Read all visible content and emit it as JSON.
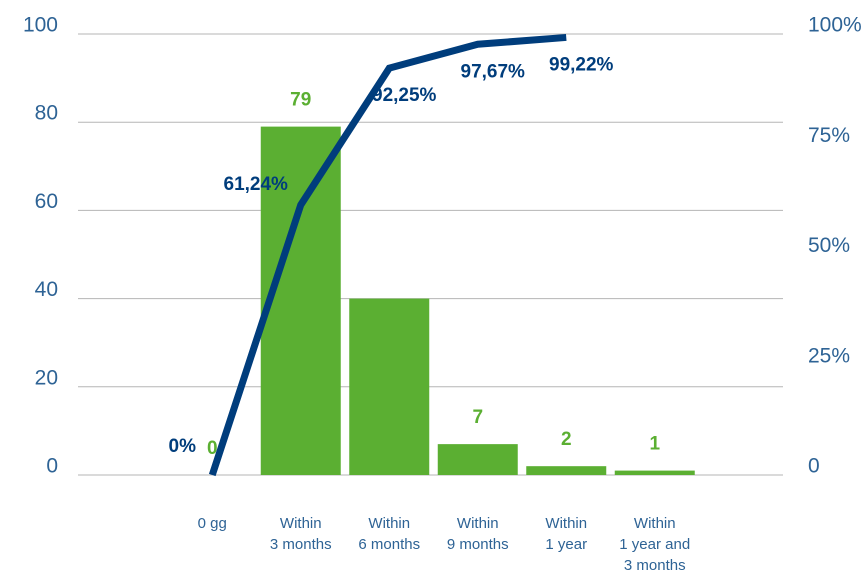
{
  "chart_data": {
    "type": "bar",
    "categories": [
      "0 gg",
      "Within\n3 months",
      "Within\n6 months",
      "Within\n9 months",
      "Within\n1 year",
      "Within\n1 year and\n3 months"
    ],
    "series": [
      {
        "type": "bar",
        "color": "#5baf32",
        "values": [
          0,
          79,
          40,
          7,
          2,
          1
        ],
        "value_labels": [
          "0",
          "79",
          null,
          "7",
          "2",
          "1"
        ]
      },
      {
        "type": "line",
        "axis": "y2",
        "color": "#003d7c",
        "values": [
          0,
          61.24,
          92.25,
          97.67,
          99.22,
          null
        ],
        "value_labels": [
          "0%",
          "61,24%",
          "92,25%",
          "97,67%",
          "99,22%",
          null
        ]
      }
    ],
    "ylim": [
      0,
      100
    ],
    "yticks": [
      0,
      20,
      40,
      60,
      80,
      100
    ],
    "y2lim": [
      0,
      100
    ],
    "y2ticks": [
      0,
      {
        "value": 25,
        "label": "25%"
      },
      {
        "value": 50,
        "label": "50%"
      },
      {
        "value": 75,
        "label": "75%"
      },
      {
        "value": 100,
        "label": "100%"
      }
    ],
    "grid": true
  }
}
